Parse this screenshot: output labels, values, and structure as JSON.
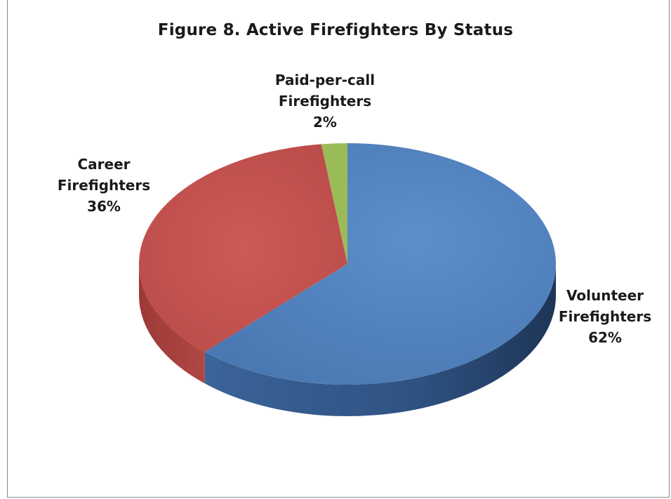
{
  "chart_data": {
    "type": "pie",
    "title": "Figure 8. Active Firefighters By Status",
    "slices": [
      {
        "name_lines": [
          "Volunteer",
          "Firefighters"
        ],
        "pct_label": "62%",
        "value": 62,
        "color": "#4f81bd",
        "dark": "#2a4a78"
      },
      {
        "name_lines": [
          "Career",
          "Firefighters"
        ],
        "pct_label": "36%",
        "value": 36,
        "color": "#c0504d",
        "dark": "#8a3330"
      },
      {
        "name_lines": [
          "Paid-per-call",
          "Firefighters"
        ],
        "pct_label": "2%",
        "value": 2,
        "color": "#9bbb59",
        "dark": "#6d8a3b"
      }
    ]
  }
}
